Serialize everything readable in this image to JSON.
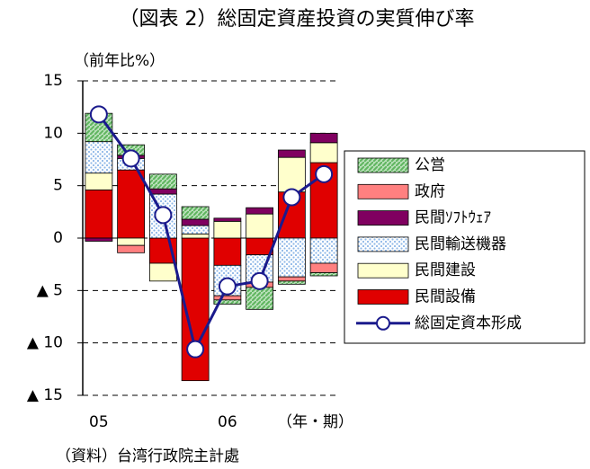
{
  "chart_data": {
    "type": "bar",
    "stacked": true,
    "title": "（図表 2）総固定資産投資の実質伸び率",
    "y_axis_label": "（前年比%）",
    "x_axis_label": "（年・期）",
    "source": "（資料）台湾行政院主計處",
    "categories": [
      "05",
      null,
      null,
      null,
      "06",
      null,
      null,
      null
    ],
    "ylim": [
      -15,
      15
    ],
    "yticks": [
      15,
      10,
      5,
      0,
      {
        "value": -5,
        "label": "▲ 5"
      },
      {
        "value": -10,
        "label": "▲ 10"
      },
      {
        "value": -15,
        "label": "▲ 15"
      }
    ],
    "grid": true,
    "legend": "right",
    "series": [
      {
        "name": "公営",
        "color": "#5fb55f",
        "pattern": "hatch",
        "values": [
          2.7,
          1.0,
          1.4,
          1.2,
          -0.4,
          -2.1,
          -0.3,
          -0.3
        ]
      },
      {
        "name": "政府",
        "color": "#ff8080",
        "values": [
          0,
          -0.7,
          0,
          0,
          -0.4,
          -0.5,
          -0.4,
          -0.9
        ]
      },
      {
        "name": "民間ｿﾌﾄｳｪｱ",
        "color": "#800060",
        "values": [
          -0.3,
          0.3,
          0.5,
          0.6,
          0.3,
          0.6,
          0.7,
          0.9
        ]
      },
      {
        "name": "民間輸送機器",
        "color": "#8fb8e8",
        "pattern": "dots",
        "values": [
          3.0,
          1.1,
          4.2,
          0.8,
          -2.9,
          -2.6,
          -3.7,
          -2.4
        ]
      },
      {
        "name": "民間建設",
        "color": "#ffffcc",
        "values": [
          1.6,
          -0.7,
          -1.7,
          0.4,
          1.6,
          2.3,
          3.3,
          1.9
        ]
      },
      {
        "name": "民間設備",
        "color": "#e00000",
        "values": [
          4.6,
          6.5,
          -2.4,
          -13.6,
          -2.6,
          -1.6,
          4.4,
          7.2
        ]
      }
    ],
    "line": {
      "name": "総固定資本形成",
      "color": "#1a1a8c",
      "values": [
        11.8,
        7.6,
        2.2,
        -10.6,
        -4.6,
        -4.1,
        3.9,
        6.1
      ]
    }
  }
}
